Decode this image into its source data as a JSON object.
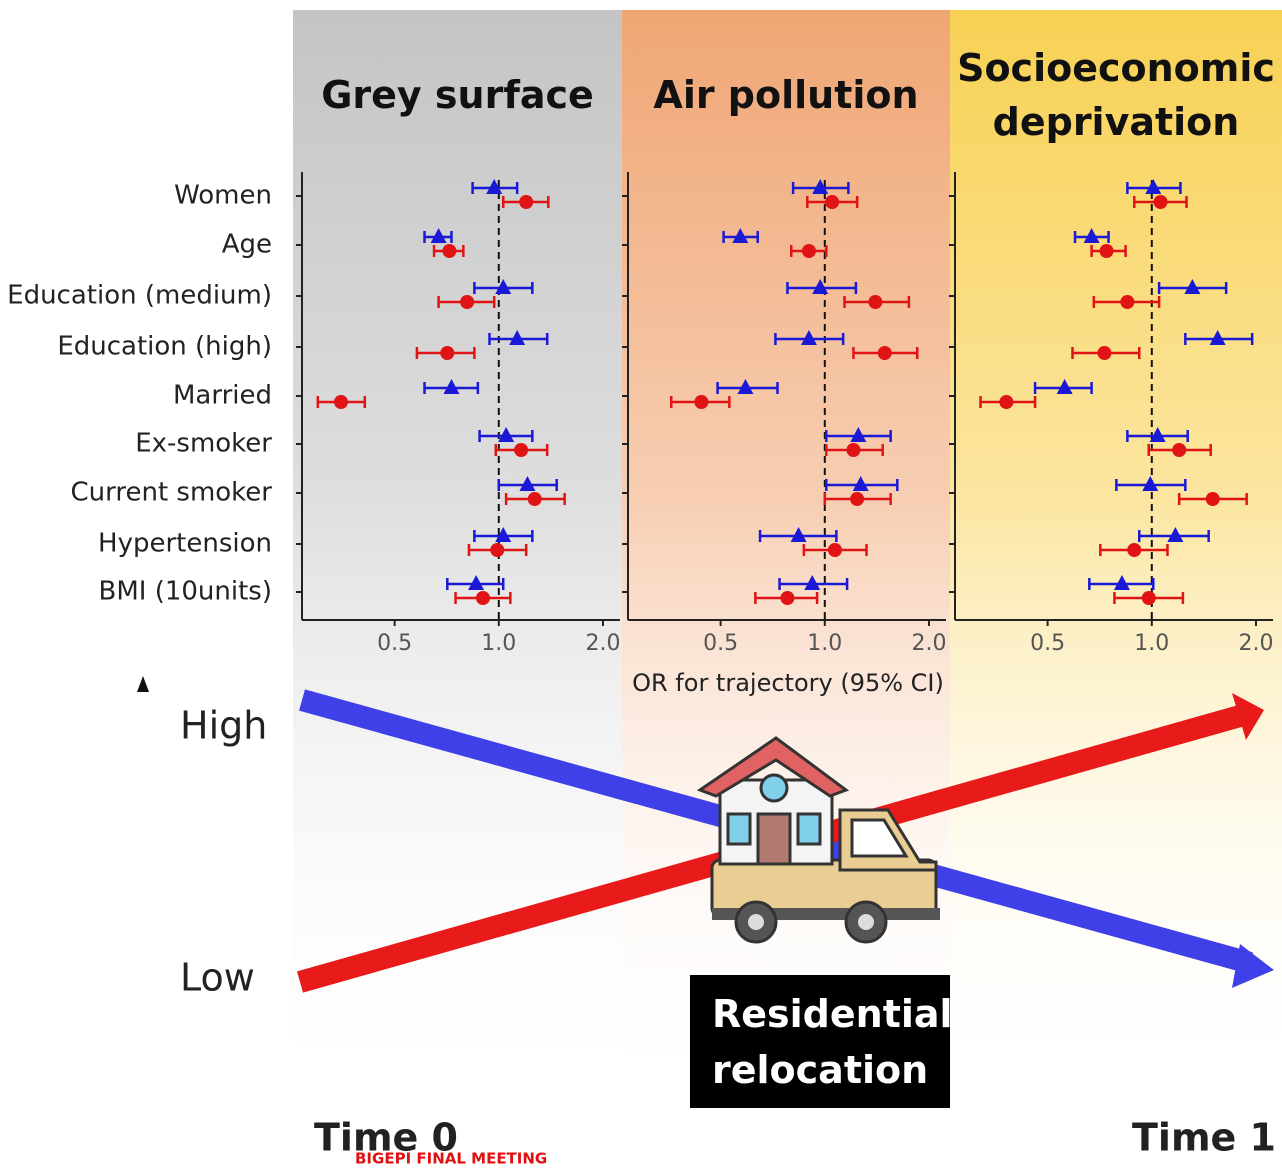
{
  "chart_data": {
    "type": "forest",
    "categories": [
      "Women",
      "Age",
      "Education (medium)",
      "Education (high)",
      "Married",
      "Ex-smoker",
      "Current smoker",
      "Hypertension",
      "BMI (10units)"
    ],
    "x_label": "OR for trajectory (95% CI)",
    "log_scale": true,
    "xlim": [
      0.27,
      2.24
    ],
    "xticks": [
      0.5,
      {
        "value": 1,
        "label": "1.0"
      },
      {
        "value": 2,
        "label": "2.0"
      }
    ],
    "reference": 1,
    "panels": [
      {
        "title": "Grey surface",
        "background": "#c4c4c4",
        "series": [
          {
            "color": "#1a1ad6",
            "marker": "triangle",
            "values": [
              0.97,
              0.67,
              1.03,
              1.13,
              0.73,
              1.05,
              1.21,
              1.03,
              0.86
            ],
            "lower": [
              0.84,
              0.61,
              0.85,
              0.94,
              0.61,
              0.88,
              1.0,
              0.85,
              0.71
            ],
            "upper": [
              1.13,
              0.73,
              1.25,
              1.38,
              0.87,
              1.25,
              1.47,
              1.25,
              1.03
            ]
          },
          {
            "color": "#e01414",
            "marker": "circle",
            "values": [
              1.2,
              0.72,
              0.81,
              0.71,
              0.35,
              1.16,
              1.27,
              0.99,
              0.9
            ],
            "lower": [
              1.03,
              0.65,
              0.67,
              0.58,
              0.3,
              0.98,
              1.05,
              0.82,
              0.75
            ],
            "upper": [
              1.39,
              0.79,
              0.97,
              0.85,
              0.41,
              1.38,
              1.55,
              1.2,
              1.08
            ]
          }
        ]
      },
      {
        "title": "Air pollution",
        "background": "#f0a674",
        "series": [
          {
            "color": "#1a1ad6",
            "marker": "triangle",
            "values": [
              0.97,
              0.57,
              0.97,
              0.9,
              0.59,
              1.25,
              1.27,
              0.84,
              0.92
            ],
            "lower": [
              0.81,
              0.51,
              0.78,
              0.72,
              0.49,
              1.01,
              1.01,
              0.65,
              0.74
            ],
            "upper": [
              1.17,
              0.64,
              1.23,
              1.13,
              0.73,
              1.55,
              1.62,
              1.08,
              1.16
            ]
          },
          {
            "color": "#e01414",
            "marker": "circle",
            "values": [
              1.05,
              0.9,
              1.4,
              1.49,
              0.44,
              1.21,
              1.24,
              1.07,
              0.78
            ],
            "lower": [
              0.89,
              0.8,
              1.14,
              1.21,
              0.36,
              1.01,
              1.0,
              0.87,
              0.63
            ],
            "upper": [
              1.24,
              1.01,
              1.75,
              1.85,
              0.53,
              1.47,
              1.55,
              1.32,
              0.95
            ]
          }
        ]
      },
      {
        "title": "Socioeconomic deprivation",
        "background": "#f8d154",
        "series": [
          {
            "color": "#1a1ad6",
            "marker": "triangle",
            "values": [
              1.01,
              0.67,
              1.31,
              1.55,
              0.56,
              1.04,
              0.99,
              1.17,
              0.82
            ],
            "lower": [
              0.85,
              0.6,
              1.05,
              1.25,
              0.46,
              0.85,
              0.79,
              0.92,
              0.66
            ],
            "upper": [
              1.21,
              0.75,
              1.64,
              1.95,
              0.67,
              1.27,
              1.25,
              1.46,
              1.01
            ]
          },
          {
            "color": "#e01414",
            "marker": "circle",
            "values": [
              1.06,
              0.74,
              0.85,
              0.73,
              0.38,
              1.2,
              1.5,
              0.89,
              0.98
            ],
            "lower": [
              0.89,
              0.67,
              0.68,
              0.59,
              0.32,
              0.98,
              1.2,
              0.71,
              0.78
            ],
            "upper": [
              1.26,
              0.84,
              1.05,
              0.92,
              0.46,
              1.48,
              1.88,
              1.11,
              1.23
            ]
          }
        ]
      }
    ]
  },
  "diagram": {
    "high": "High",
    "low": "Low",
    "event": "Residential relocation",
    "time_start": "Time 0",
    "time_end": "Time 1",
    "footer": "BIGEPI FINAL MEETING"
  }
}
